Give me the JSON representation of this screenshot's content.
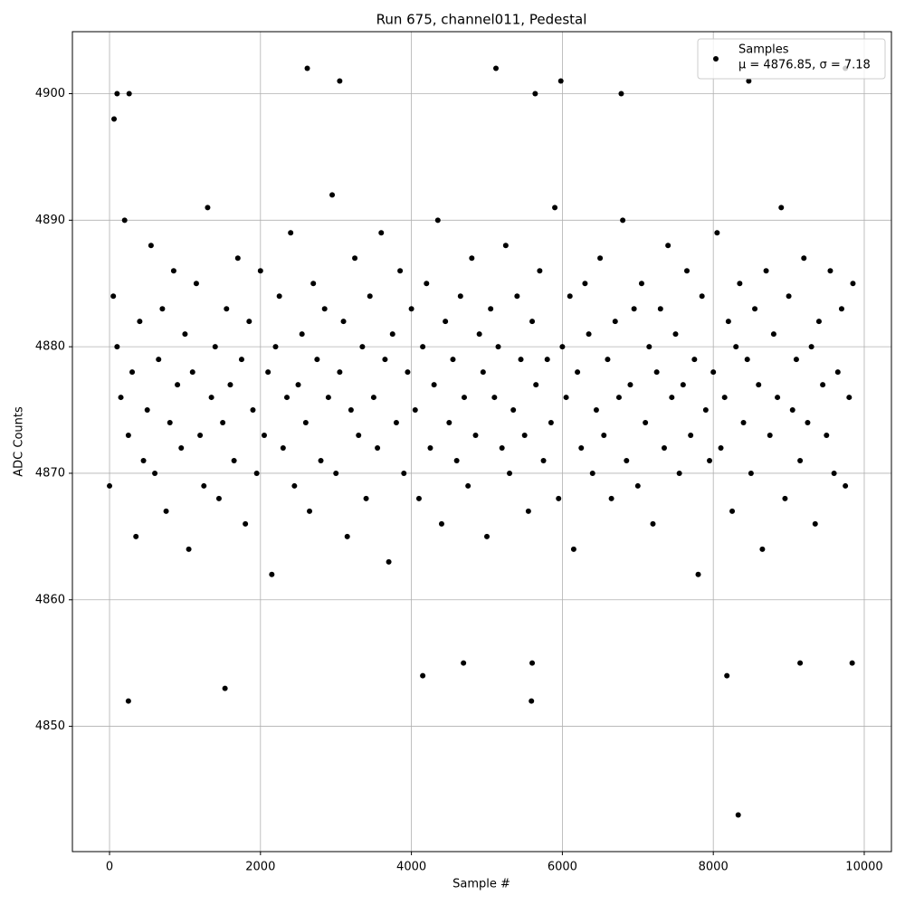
{
  "chart_data": {
    "type": "scatter",
    "title": "Run 675, channel011, Pedestal",
    "x_label": "Sample #",
    "y_label": "ADC Counts",
    "xlim": [
      -492,
      10360
    ],
    "ylim": [
      4840.1,
      4904.9
    ],
    "xticks": [
      0,
      2000,
      4000,
      6000,
      8000,
      10000
    ],
    "yticks": [
      4850,
      4860,
      4870,
      4880,
      4890,
      4900
    ],
    "grid": true,
    "legend": "upper right",
    "legend_note": "μ = 4876.85, σ = 7.18",
    "series": [
      {
        "name": "Samples",
        "color": "#000000",
        "x": [
          0,
          50,
          100,
          150,
          200,
          250,
          300,
          350,
          400,
          450,
          500,
          550,
          600,
          650,
          700,
          750,
          800,
          850,
          900,
          950,
          1000,
          1050,
          1100,
          1150,
          1200,
          1250,
          1300,
          1350,
          1400,
          1450,
          1500,
          1550,
          1600,
          1650,
          1700,
          1750,
          1800,
          1850,
          1900,
          1950,
          2000,
          2050,
          2100,
          2150,
          2200,
          2250,
          2300,
          2350,
          2400,
          2450,
          2500,
          2550,
          2600,
          2650,
          2700,
          2750,
          2800,
          2850,
          2900,
          2950,
          3000,
          3050,
          3100,
          3150,
          3200,
          3250,
          3300,
          3350,
          3400,
          3450,
          3500,
          3550,
          3600,
          3650,
          3700,
          3750,
          3800,
          3850,
          3900,
          3950,
          4000,
          4050,
          4100,
          4150,
          4200,
          4250,
          4300,
          4350,
          4400,
          4450,
          4500,
          4550,
          4600,
          4650,
          4700,
          4750,
          4800,
          4850,
          4900,
          4950,
          5000,
          5050,
          5100,
          5150,
          5200,
          5250,
          5300,
          5350,
          5400,
          5450,
          5500,
          5550,
          5600,
          5650,
          5700,
          5750,
          5800,
          5850,
          5900,
          5950,
          6000,
          6050,
          6100,
          6150,
          6200,
          6250,
          6300,
          6350,
          6400,
          6450,
          6500,
          6550,
          6600,
          6650,
          6700,
          6750,
          6800,
          6850,
          6900,
          6950,
          7000,
          7050,
          7100,
          7150,
          7200,
          7250,
          7300,
          7350,
          7400,
          7450,
          7500,
          7550,
          7600,
          7650,
          7700,
          7750,
          7800,
          7850,
          7900,
          7950,
          8000,
          8050,
          8100,
          8150,
          8200,
          8250,
          8300,
          8350,
          8400,
          8450,
          8500,
          8550,
          8600,
          8650,
          8700,
          8750,
          8800,
          8850,
          8900,
          8950,
          9000,
          9050,
          9100,
          9150,
          9200,
          9250,
          9300,
          9350,
          9400,
          9450,
          9500,
          9550,
          9600,
          9650,
          9700,
          9750,
          9800,
          9850,
          250,
          1530,
          8330,
          5590,
          2620,
          5120,
          3050,
          5980,
          8470,
          9750,
          100,
          260,
          60,
          5640,
          6780,
          4150,
          8180,
          9840,
          9150,
          5600,
          4690
        ],
        "values": [
          4869,
          4884,
          4880,
          4876,
          4890,
          4873,
          4878,
          4865,
          4882,
          4871,
          4875,
          4888,
          4870,
          4879,
          4883,
          4867,
          4874,
          4886,
          4877,
          4872,
          4881,
          4864,
          4878,
          4885,
          4873,
          4869,
          4891,
          4876,
          4880,
          4868,
          4874,
          4883,
          4877,
          4871,
          4887,
          4879,
          4866,
          4882,
          4875,
          4870,
          4886,
          4873,
          4878,
          4862,
          4880,
          4884,
          4872,
          4876,
          4889,
          4869,
          4877,
          4881,
          4874,
          4867,
          4885,
          4879,
          4871,
          4883,
          4876,
          4892,
          4870,
          4878,
          4882,
          4865,
          4875,
          4887,
          4873,
          4880,
          4868,
          4884,
          4876,
          4872,
          4889,
          4879,
          4863,
          4881,
          4874,
          4886,
          4870,
          4878,
          4883,
          4875,
          4868,
          4880,
          4885,
          4872,
          4877,
          4890,
          4866,
          4882,
          4874,
          4879,
          4871,
          4884,
          4876,
          4869,
          4887,
          4873,
          4881,
          4878,
          4865,
          4883,
          4876,
          4880,
          4872,
          4888,
          4870,
          4875,
          4884,
          4879,
          4873,
          4867,
          4882,
          4877,
          4886,
          4871,
          4879,
          4874,
          4891,
          4868,
          4880,
          4876,
          4884,
          4864,
          4878,
          4872,
          4885,
          4881,
          4870,
          4875,
          4887,
          4873,
          4879,
          4868,
          4882,
          4876,
          4890,
          4871,
          4877,
          4883,
          4869,
          4885,
          4874,
          4880,
          4866,
          4878,
          4883,
          4872,
          4888,
          4876,
          4881,
          4870,
          4877,
          4886,
          4873,
          4879,
          4862,
          4884,
          4875,
          4871,
          4878,
          4889,
          4872,
          4876,
          4882,
          4867,
          4880,
          4885,
          4874,
          4879,
          4870,
          4883,
          4877,
          4864,
          4886,
          4873,
          4881,
          4876,
          4891,
          4868,
          4884,
          4875,
          4879,
          4871,
          4887,
          4874,
          4880,
          4866,
          4882,
          4877,
          4873,
          4886,
          4870,
          4878,
          4883,
          4869,
          4876,
          4885,
          4852,
          4853,
          4843,
          4852,
          4902,
          4902,
          4901,
          4901,
          4901,
          4902,
          4900,
          4900,
          4898,
          4900,
          4900,
          4854,
          4854,
          4855,
          4855,
          4855,
          4855
        ]
      }
    ]
  }
}
